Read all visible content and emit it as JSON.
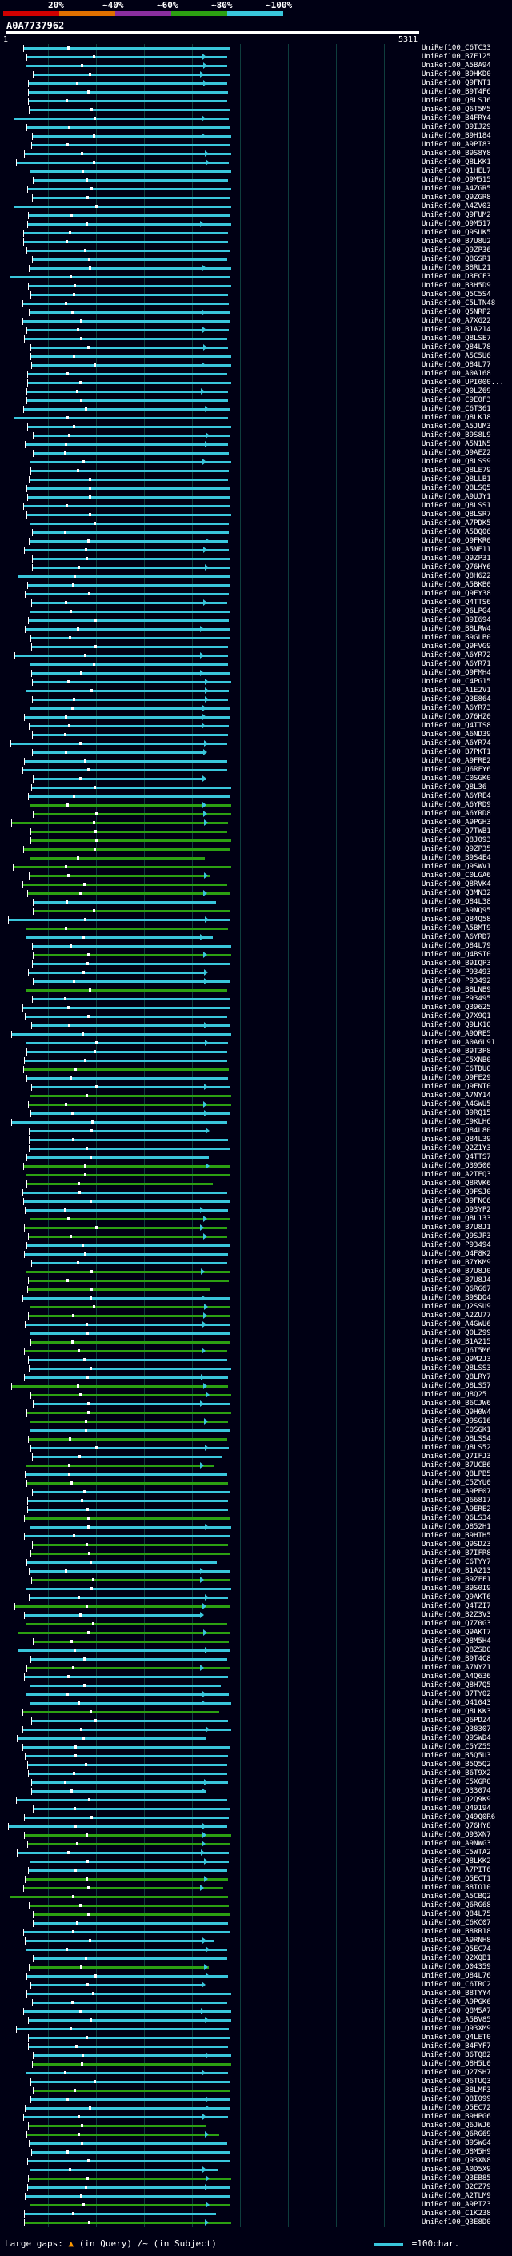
{
  "scale": {
    "labels": [
      "20%",
      "~40%",
      "~60%",
      "~80%",
      "~100%"
    ],
    "segments": [
      {
        "color": "#d10000"
      },
      {
        "color": "#e07000"
      },
      {
        "color": "#8a2ea0"
      },
      {
        "color": "#2ca012"
      },
      {
        "color": "#39c6dc"
      }
    ]
  },
  "query": {
    "id": "A0A7737962",
    "start": "1",
    "end": "5311"
  },
  "hits": [
    "UniRef100_C6TC33",
    "UniRef100_B7F125",
    "UniRef100_A5BA94",
    "UniRef100_B9HKD0",
    "UniRef100_Q9FNT1",
    "UniRef100_B9T4F6",
    "UniRef100_Q8LSJ6",
    "UniRef100_Q6T5M5",
    "UniRef100_B4FRY4",
    "UniRef100_B9IJ29",
    "UniRef100_B9H184",
    "UniRef100_A9PI83",
    "UniRef100_B9S8Y8",
    "UniRef100_Q8LKK1",
    "UniRef100_Q1HEL7",
    "UniRef100_Q9M515",
    "UniRef100_A4ZGR5",
    "UniRef100_Q9ZGR8",
    "UniRef100_A4ZV03",
    "UniRef100_Q9FUM2",
    "UniRef100_Q9M517",
    "UniRef100_Q9SUK5",
    "UniRef100_B7U8U2",
    "UniRef100_Q9ZP36",
    "UniRef100_Q8GSR1",
    "UniRef100_B8RL21",
    "UniRef100_D3ECF3",
    "UniRef100_B3H5D9",
    "UniRef100_Q5C5S4",
    "UniRef100_C5LTN48",
    "UniRef100_Q5NRP2",
    "UniRef100_A7XG22",
    "UniRef100_B1A214",
    "UniRef100_Q8LSE7",
    "UniRef100_Q84L78",
    "UniRef100_A5C5U6",
    "UniRef100_Q84L77",
    "UniRef100_A0A168",
    "UniRef100_UPI000...",
    "UniRef100_Q0LZ69",
    "UniRef100_C9E0F3",
    "UniRef100_C6T361",
    "UniRef100_Q8LKJ8",
    "UniRef100_A5JUM3",
    "UniRef100_B9S8L9",
    "UniRef100_A5N1N5",
    "UniRef100_Q9AEZ2",
    "UniRef100_Q8LSS9",
    "UniRef100_Q8LE79",
    "UniRef100_Q8LLB1",
    "UniRef100_Q8LSQ5",
    "UniRef100_A9UJY1",
    "UniRef100_Q8LSS1",
    "UniRef100_Q8LSR7",
    "UniRef100_A7PDK5",
    "UniRef100_A5BQ06",
    "UniRef100_Q9FKR0",
    "UniRef100_A5NE11",
    "UniRef100_Q9ZP31",
    "UniRef100_Q76HY6",
    "UniRef100_Q8H622",
    "UniRef100_A5BKB0",
    "UniRef100_Q9FY38",
    "UniRef100_Q4TTS6",
    "UniRef100_Q6LPG4",
    "UniRef100_B9I694",
    "UniRef100_B8LRW4",
    "UniRef100_B9GLB0",
    "UniRef100_Q9FVG9",
    "UniRef100_A6YR72",
    "UniRef100_A6YR71",
    "UniRef100_Q9FMH4",
    "UniRef100_C4PG15",
    "UniRef100_A1E2V1",
    "UniRef100_Q3E864",
    "UniRef100_A6YR73",
    "UniRef100_Q76HZ0",
    "UniRef100_Q4TTS8",
    "UniRef100_A6ND39",
    "UniRef100_A6YR74",
    "UniRef100_B7PKT1",
    "UniRef100_A9FRE2",
    "UniRef100_Q6RFY6",
    "UniRef100_C0SGK0",
    "UniRef100_Q8L36",
    "UniRef100_A6YRE4",
    "UniRef100_A6YRD9",
    "UniRef100_A6YRD8",
    "UniRef100_A9PGH3",
    "UniRef100_Q7TWB1",
    "UniRef100_Q8J093",
    "UniRef100_Q9ZP35",
    "UniRef100_B9S4E4",
    "UniRef100_Q9SWV1",
    "UniRef100_C0LGA6",
    "UniRef100_Q8RVK4",
    "UniRef100_Q3MN32",
    "UniRef100_Q84L38",
    "UniRef100_A9NQ95",
    "UniRef100_Q84Q58",
    "UniRef100_A5BMT9",
    "UniRef100_A6YRD7",
    "UniRef100_Q84L79",
    "UniRef100_Q4BSI0",
    "UniRef100_B9IQP3",
    "UniRef100_P93493",
    "UniRef100_P93492",
    "UniRef100_B8LNB9",
    "UniRef100_P93495",
    "UniRef100_Q39625",
    "UniRef100_Q7X9Q1",
    "UniRef100_Q9LK10",
    "UniRef100_A9ORE5",
    "UniRef100_A0A6L91",
    "UniRef100_B9T3P8",
    "UniRef100_C5XNB0",
    "UniRef100_C6TDU0",
    "UniRef100_Q9FE29",
    "UniRef100_Q9FNT0",
    "UniRef100_A7NY14",
    "UniRef100_A4GWU5",
    "UniRef100_B9RQ15",
    "UniRef100_C9KLH6",
    "UniRef100_Q84L80",
    "UniRef100_Q84L39",
    "UniRef100_Q2Z1Y3",
    "UniRef100_Q4TTS7",
    "UniRef100_Q39500",
    "UniRef100_A2TEQ3",
    "UniRef100_Q8RVK6",
    "UniRef100_Q9FSJ0",
    "UniRef100_B9FNC6",
    "UniRef100_Q93YP2",
    "UniRef100_Q8L133",
    "UniRef100_B7U8J1",
    "UniRef100_Q9SJP3",
    "UniRef100_P93494",
    "UniRef100_Q4F8K2",
    "UniRef100_B7YKM9",
    "UniRef100_B7U8J0",
    "UniRef100_B7U8J4",
    "UniRef100_Q6RG67",
    "UniRef100_B9SDQ4",
    "UniRef100_Q2SSU9",
    "UniRef100_A2ZU77",
    "UniRef100_A4GWU6",
    "UniRef100_Q0LZ99",
    "UniRef100_B1A215",
    "UniRef100_Q6T5M6",
    "UniRef100_Q9M2J3",
    "UniRef100_Q8LSS3",
    "UniRef100_Q8LRY7",
    "UniRef100_Q8LS57",
    "UniRef100_Q8Q25",
    "UniRef100_B6CJW6",
    "UniRef100_Q9H0W4",
    "UniRef100_Q9SG16",
    "UniRef100_C0SGK1",
    "UniRef100_Q8LSS4",
    "UniRef100_Q8LS52",
    "UniRef100_Q7IFJ3",
    "UniRef100_B7UCB6",
    "UniRef100_Q8LPB5",
    "UniRef100_C5ZYU0",
    "UniRef100_A9PE07",
    "UniRef100_Q66817",
    "UniRef100_A9ERE2",
    "UniRef100_Q6LS34",
    "UniRef100_Q852H1",
    "UniRef100_B9HTH5",
    "UniRef100_Q9SDZ3",
    "UniRef100_B7IFR8",
    "UniRef100_C6TYY7",
    "UniRef100_B1A213",
    "UniRef100_B9ZFF1",
    "UniRef100_B9S0I9",
    "UniRef100_Q9AKT6",
    "UniRef100_Q4TZI7",
    "UniRef100_B2Z3V3",
    "UniRef100_Q7Z0G3",
    "UniRef100_Q9AKT7",
    "UniRef100_Q8M5H4",
    "UniRef100_Q8ZSD0",
    "UniRef100_B9T4C8",
    "UniRef100_A7NYZ1",
    "UniRef100_A4Q636",
    "UniRef100_Q8H7Q5",
    "UniRef100_B7TY02",
    "UniRef100_Q41043",
    "UniRef100_Q8LKK3",
    "UniRef100_Q6PDZ4",
    "UniRef100_Q38307",
    "UniRef100_Q9SWD4",
    "UniRef100_C5YZ55",
    "UniRef100_B5Q5U3",
    "UniRef100_B5Q5Q2",
    "UniRef100_B6T9X2",
    "UniRef100_C5XGR0",
    "UniRef100_Q33074",
    "UniRef100_Q2Q9K9",
    "UniRef100_Q49194",
    "UniRef100_Q49Q0R6",
    "UniRef100_Q76HY8",
    "UniRef100_Q93XN7",
    "UniRef100_A9NWG3",
    "UniRef100_C5WTA2",
    "UniRef100_Q8LKK2",
    "UniRef100_A7PIT6",
    "UniRef100_Q5ECT1",
    "UniRef100_B8IO10",
    "UniRef100_A5CBQ2",
    "UniRef100_Q6RG68",
    "UniRef100_Q84L75",
    "UniRef100_C6KC07",
    "UniRef100_B8RR18",
    "UniRef100_A9RNH8",
    "UniRef100_Q5EC74",
    "UniRef100_Q2XQB1",
    "UniRef100_Q04359",
    "UniRef100_Q84L76",
    "UniRef100_C6TRC2",
    "UniRef100_B8TYY4",
    "UniRef100_A9PGK6",
    "UniRef100_Q8M5A7",
    "UniRef100_A5BV85",
    "UniRef100_Q93XM9",
    "UniRef100_Q4LET0",
    "UniRef100_B4FYF7",
    "UniRef100_B6TQ82",
    "UniRef100_Q8H5L0",
    "UniRef100_Q27SH7",
    "UniRef100_Q6TUQ3",
    "UniRef100_B8LMF3",
    "UniRef100_Q8I099",
    "UniRef100_Q5EC72",
    "UniRef100_B9HPG6",
    "UniRef100_Q6JWJ6",
    "UniRef100_Q6RG69",
    "UniRef100_B9SWG4",
    "UniRef100_Q8M5H9",
    "UniRef100_Q93XN8",
    "UniRef100_A0D5X9",
    "UniRef100_Q3EB85",
    "UniRef100_B2CZ79",
    "UniRef100_A2TLM9",
    "UniRef100_A9PIZ3",
    "UniRef100_C1K238",
    "UniRef100_Q3E8D0"
  ],
  "legend": {
    "prefix": "Large gaps:",
    "marker": "▲",
    "query_text": "(in Query)",
    "subject_text": "/~ (in Subject)",
    "right_text": "=100char."
  }
}
